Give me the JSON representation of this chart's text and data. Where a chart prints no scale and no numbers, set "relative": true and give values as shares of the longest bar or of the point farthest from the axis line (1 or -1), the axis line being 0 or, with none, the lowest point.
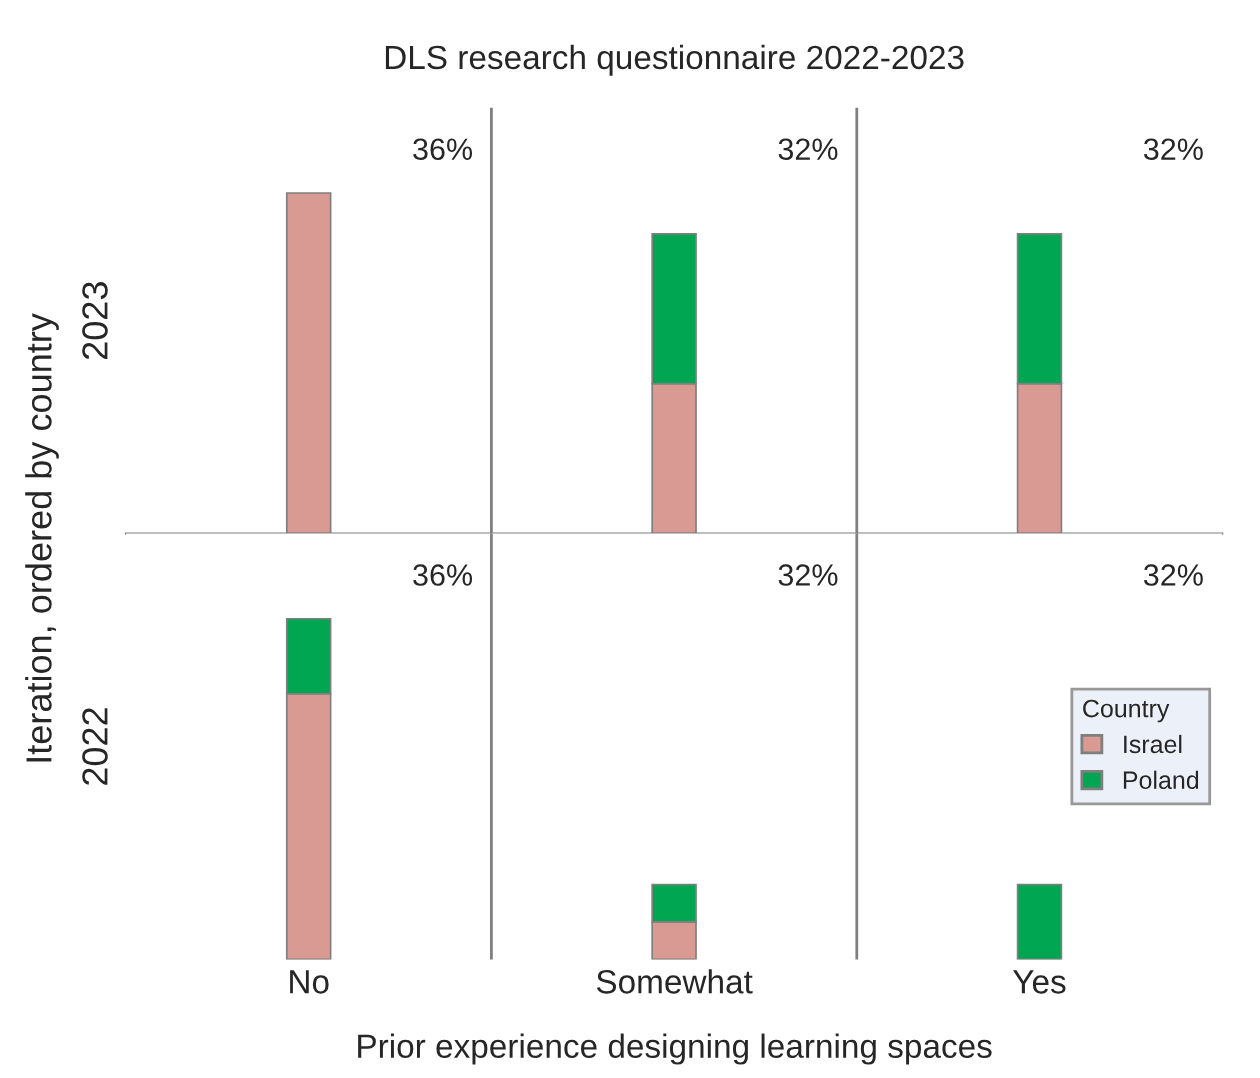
{
  "chart_data": [
    {
      "type": "bar",
      "title": "DLS research questionnaire 2022-2023",
      "ylabel": "2023",
      "relative": true,
      "stacked": true,
      "tick_labels": false,
      "legend": false,
      "categories": [
        null,
        null,
        null
      ],
      "annotations": [
        "36%",
        "32%",
        "32%",
        "Iteration, ordered by country"
      ],
      "series": [
        {
          "color": "#d99a94",
          "values": [
            1,
            0.44,
            0.44
          ]
        },
        {
          "color": "#00a651",
          "values": [
            0,
            0.44,
            0.44
          ]
        }
      ]
    },
    {
      "type": "bar",
      "ylabel": "2022",
      "xlabel": "Prior experience designing learning spaces",
      "relative": true,
      "stacked": true,
      "tick_labels": "x",
      "legend": "right",
      "legend_title": "Country",
      "categories": [
        "No",
        "Somewhat",
        "Yes"
      ],
      "annotations": [
        "36%",
        "32%",
        "32%"
      ],
      "series": [
        {
          "name": "Israel",
          "color": "#d99a94",
          "values": [
            0.78,
            0.11,
            0
          ]
        },
        {
          "name": "Poland",
          "color": "#00a651",
          "values": [
            0.22,
            0.11,
            0.22
          ]
        }
      ]
    }
  ]
}
